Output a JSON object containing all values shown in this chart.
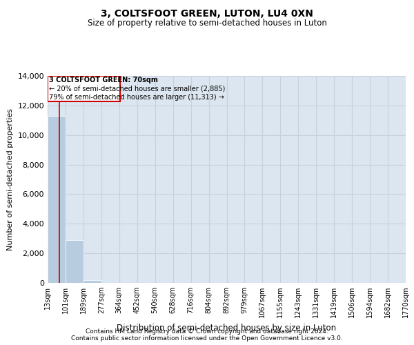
{
  "title": "3, COLTSFOOT GREEN, LUTON, LU4 0XN",
  "subtitle": "Size of property relative to semi-detached houses in Luton",
  "xlabel": "Distribution of semi-detached houses by size in Luton",
  "ylabel": "Number of semi-detached properties",
  "footer_line1": "Contains HM Land Registry data © Crown copyright and database right 2024.",
  "footer_line2": "Contains public sector information licensed under the Open Government Licence v3.0.",
  "annotation_line1": "3 COLTSFOOT GREEN: 70sqm",
  "annotation_line2": "← 20% of semi-detached houses are smaller (2,885)",
  "annotation_line3": "79% of semi-detached houses are larger (11,313) →",
  "property_size": 70,
  "bar_edges": [
    13,
    101,
    189,
    277,
    364,
    452,
    540,
    628,
    716,
    804,
    892,
    979,
    1067,
    1155,
    1243,
    1331,
    1419,
    1506,
    1594,
    1682,
    1770
  ],
  "bar_heights": [
    11313,
    2885,
    200,
    15,
    4,
    2,
    1,
    0,
    0,
    0,
    0,
    0,
    0,
    0,
    0,
    0,
    0,
    0,
    0,
    0
  ],
  "bar_color": "#b8ccdf",
  "bar_edge_color": "white",
  "grid_color": "#c8d0dc",
  "background_color": "#dce6f0",
  "red_line_color": "#cc0000",
  "annotation_box_color": "#cc0000",
  "ylim": [
    0,
    14000
  ],
  "yticks": [
    0,
    2000,
    4000,
    6000,
    8000,
    10000,
    12000,
    14000
  ]
}
